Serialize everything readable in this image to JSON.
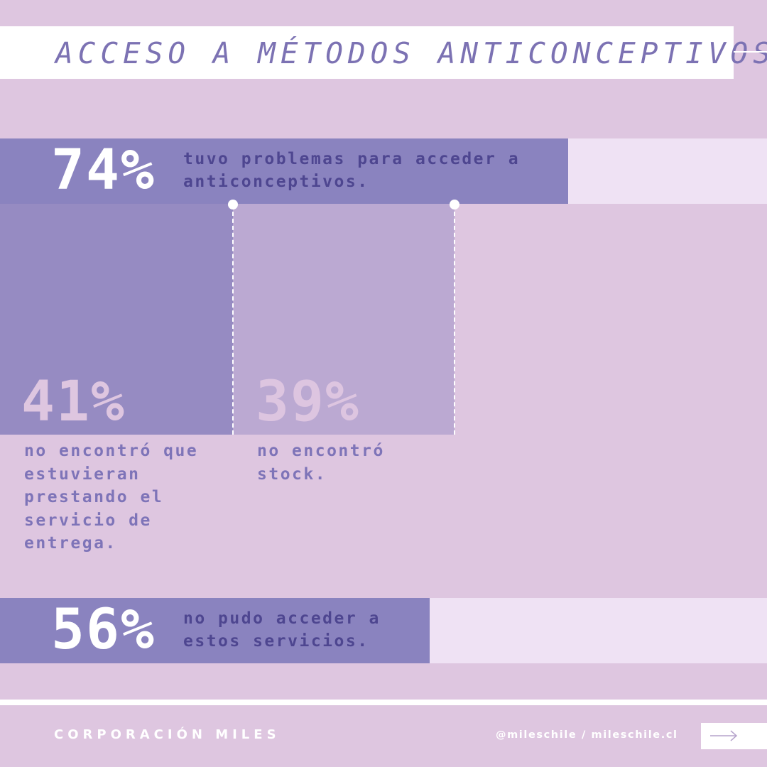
{
  "title": "ACCESO A MÉTODOS ANTICONCEPTIVOS",
  "colors": {
    "background": "#dec6e0",
    "bar_fill": "#8a83bf",
    "bar_track": "#efe2f4",
    "block_41": "#968bc2",
    "block_39": "#bba9d2",
    "text_dark": "#4e4690",
    "text_purple": "#7e74b8"
  },
  "stats": [
    {
      "pct": "74%",
      "text": "tuvo problemas para acceder a anticonceptivos."
    },
    {
      "pct": "41%",
      "text": "no encontró que estuvieran prestando el servicio de entrega."
    },
    {
      "pct": "39%",
      "text": "no encontró stock."
    },
    {
      "pct": "56%",
      "text": "no pudo acceder a estos servicios."
    }
  ],
  "chart_data": {
    "type": "bar",
    "categories": [
      "tuvo problemas para acceder a anticonceptivos.",
      "no encontró que estuvieran prestando el servicio de entrega.",
      "no encontró stock.",
      "no pudo acceder a estos servicios."
    ],
    "values": [
      74,
      41,
      39,
      56
    ],
    "unit": "%",
    "title": "ACCESO A MÉTODOS ANTICONCEPTIVOS",
    "ylim": [
      0,
      100
    ]
  },
  "footer": {
    "org": "CORPORACIÓN MILES",
    "social": "@mileschile / mileschile.cl",
    "next_icon": "arrow-right-icon"
  }
}
